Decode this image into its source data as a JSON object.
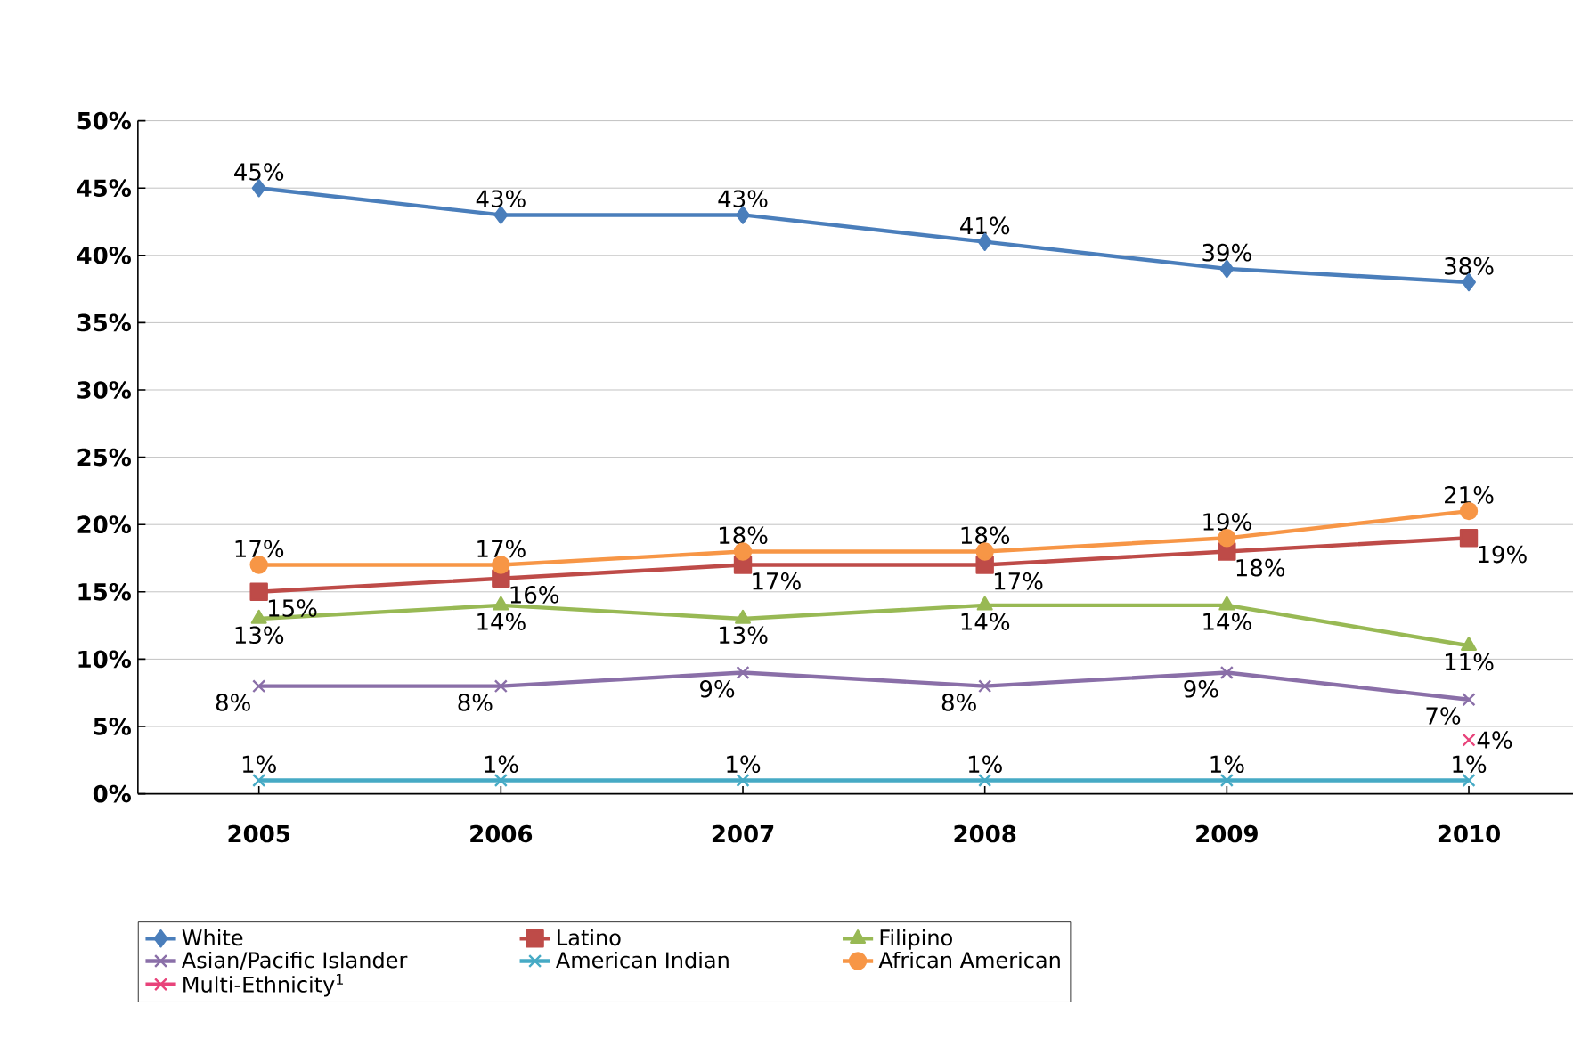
{
  "chart_data": {
    "type": "line",
    "categories": [
      "2005",
      "2006",
      "2007",
      "2008",
      "2009",
      "2010"
    ],
    "ylim": [
      0,
      50
    ],
    "yticks": [
      {
        "value": 0,
        "label": "0%"
      },
      {
        "value": 5,
        "label": "5%"
      },
      {
        "value": 10,
        "label": "10%"
      },
      {
        "value": 15,
        "label": "15%"
      },
      {
        "value": 20,
        "label": "20%"
      },
      {
        "value": 25,
        "label": "25%"
      },
      {
        "value": 30,
        "label": "30%"
      },
      {
        "value": 35,
        "label": "35%"
      },
      {
        "value": 40,
        "label": "40%"
      },
      {
        "value": 45,
        "label": "45%"
      },
      {
        "value": 50,
        "label": "50%"
      }
    ],
    "grid": "y",
    "legend": "bottom",
    "line_style": "solid",
    "series": [
      {
        "name": "White",
        "color": "#4a7ebb",
        "marker": "diamond",
        "values": [
          45,
          43,
          43,
          41,
          39,
          38
        ],
        "value_labels": [
          "45%",
          "43%",
          "43%",
          "41%",
          "39%",
          "38%"
        ]
      },
      {
        "name": "Latino",
        "color": "#be4b48",
        "marker": "square",
        "values": [
          15,
          16,
          17,
          17,
          18,
          19
        ],
        "value_labels": [
          "15%",
          "16%",
          "17%",
          "17%",
          "18%",
          "19%"
        ]
      },
      {
        "name": "Filipino",
        "color": "#98b954",
        "marker": "triangle",
        "values": [
          13,
          14,
          13,
          14,
          14,
          11
        ],
        "value_labels": [
          "13%",
          "14%",
          "13%",
          "14%",
          "14%",
          "11%"
        ]
      },
      {
        "name": "Asian/Pacific Islander",
        "color": "#8a6fa8",
        "marker": "cross",
        "values": [
          8,
          8,
          9,
          8,
          9,
          7
        ],
        "value_labels": [
          "8%",
          "8%",
          "9%",
          "8%",
          "9%",
          "7%"
        ]
      },
      {
        "name": "American Indian",
        "color": "#46aac5",
        "marker": "cross",
        "values": [
          1,
          1,
          1,
          1,
          1,
          1
        ],
        "value_labels": [
          "1%",
          "1%",
          "1%",
          "1%",
          "1%",
          "1%"
        ]
      },
      {
        "name": "African American",
        "color": "#f79646",
        "marker": "circle",
        "values": [
          17,
          17,
          18,
          18,
          19,
          21
        ],
        "value_labels": [
          "17%",
          "17%",
          "18%",
          "18%",
          "19%",
          "21%"
        ]
      },
      {
        "name": "Multi-Ethnicity$^{1}$",
        "color": "#e8437a",
        "marker": "cross",
        "values": [
          null,
          null,
          null,
          null,
          null,
          4
        ],
        "value_labels": [
          null,
          null,
          null,
          null,
          null,
          "4%"
        ]
      }
    ]
  }
}
